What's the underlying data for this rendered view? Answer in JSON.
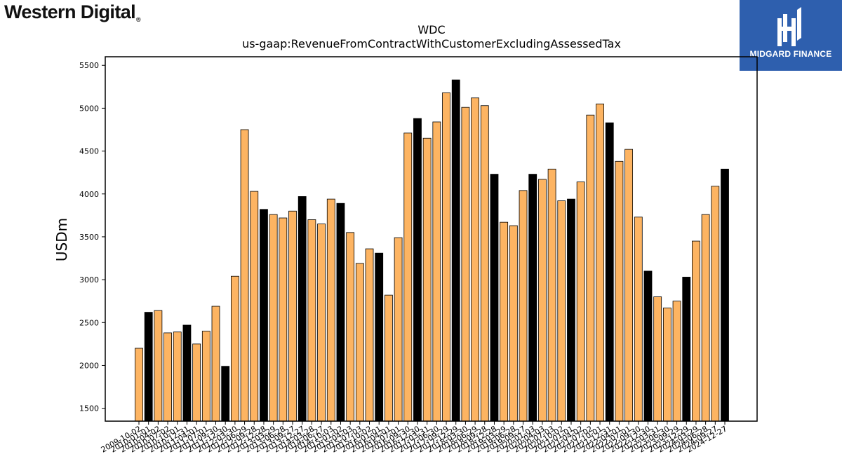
{
  "header": {
    "company_logo_text": "Western Digital",
    "brand_name": "MIDGARD FINANCE"
  },
  "chart_data": {
    "type": "bar",
    "title": "WDC",
    "subtitle": "us-gaap:RevenueFromContractWithCustomerExcludingAssessedTax",
    "ylabel": "USDm",
    "xlabel": "",
    "ylim": [
      1350,
      5600
    ],
    "yticks": [
      1500,
      2000,
      2500,
      3000,
      3500,
      4000,
      4500,
      5000,
      5500
    ],
    "grid": false,
    "legend": "none",
    "colors": {
      "quarter": "#fdb462",
      "fiscal_year_end": "#000000",
      "edge": "#000000"
    },
    "categories": [
      "2009-10-02",
      "2010-01-01",
      "2010-04-02",
      "2010-07-02",
      "2010-10-01",
      "2010-12-31",
      "2011-04-01",
      "2011-07-01",
      "2011-09-30",
      "2011-12-30",
      "2012-03-30",
      "2012-06-29",
      "2012-09-28",
      "2012-12-28",
      "2013-03-29",
      "2013-06-28",
      "2013-09-27",
      "2013-12-27",
      "2014-03-28",
      "2014-06-27",
      "2014-10-03",
      "2015-01-02",
      "2015-04-03",
      "2015-07-03",
      "2015-10-02",
      "2016-01-01",
      "2016-04-01",
      "2016-07-01",
      "2016-09-30",
      "2016-12-30",
      "2017-03-31",
      "2017-06-30",
      "2017-09-29",
      "2017-12-29",
      "2018-03-30",
      "2018-06-29",
      "2018-09-28",
      "2018-12-28",
      "2019-03-29",
      "2019-06-28",
      "2019-09-27",
      "2020-01-03",
      "2020-04-03",
      "2020-07-03",
      "2020-10-02",
      "2021-01-01",
      "2021-04-02",
      "2021-07-02",
      "2021-10-01",
      "2021-12-31",
      "2022-04-01",
      "2022-07-01",
      "2022-09-30",
      "2022-12-30",
      "2023-03-31",
      "2023-06-30",
      "2023-09-29",
      "2023-12-29",
      "2024-03-29",
      "2024-06-28",
      "2024-09-27",
      "2024-12-27"
    ],
    "tick_labels": [
      "2009-10-02",
      "2010-01-01",
      "2010-04-02",
      "2010-07-02",
      "2010-10-01",
      "2010-12-31",
      "2011-04-01",
      "2011-07-01",
      "2011-09-30",
      "2011-12-30",
      "2012-03-30",
      "2012-06-29",
      "2012-09-28",
      "2012-12-28",
      "2013-03-29",
      "2013-06-28",
      "2013-09-27",
      "2013-12-27",
      "2014-03-28",
      "2014-06-27",
      "2014-10-03",
      "2015-01-02",
      "2015-04-03",
      "2015-07-03",
      "2015-10-02",
      "2016-01-01",
      "2016-04-01",
      "2016-07-01",
      "2016-09-30",
      "2016-12-30",
      "2017-03-31",
      "2017-06-30",
      "2017-09-29",
      "2017-12-29",
      "2018-03-30",
      "2018-06-29",
      "2018-09-28",
      "2018-12-28",
      "2019-03-29",
      "2019-06-28",
      "2019-09-27",
      "2020-01-03",
      "2020-04-03",
      "2020-07-03",
      "2020-10-02",
      "2021-01-01",
      "2021-04-02",
      "2021-07-02",
      "2021-10-01",
      "2021-12-31",
      "2022-04-01",
      "2022-07-01",
      "2022-09-30",
      "2022-12-30",
      "2023-03-31",
      "2023-06-30",
      "2023-09-29",
      "2023-12-29",
      "2024-03-29",
      "2024-06-28",
      "2024-09-27",
      "2024-12-27"
    ],
    "values": [
      2200,
      2620,
      2640,
      2380,
      2390,
      2470,
      2250,
      2400,
      2690,
      1990,
      3040,
      4750,
      4030,
      3820,
      3760,
      3720,
      3800,
      3970,
      3700,
      3650,
      3940,
      3890,
      3550,
      3190,
      3360,
      3310,
      2820,
      3490,
      4710,
      4880,
      4650,
      4840,
      5180,
      5330,
      5010,
      5120,
      5030,
      4230,
      3670,
      3630,
      4040,
      4230,
      4170,
      4290,
      3920,
      3940,
      4140,
      4920,
      5050,
      4830,
      4380,
      4520,
      3730,
      3100,
      2800,
      2670,
      2750,
      3030,
      3450,
      3760,
      4090,
      4290
    ],
    "fiscal_year_end": [
      false,
      true,
      false,
      false,
      false,
      true,
      false,
      false,
      false,
      true,
      false,
      false,
      false,
      true,
      false,
      false,
      false,
      true,
      false,
      false,
      false,
      true,
      false,
      false,
      false,
      true,
      false,
      false,
      false,
      true,
      false,
      false,
      false,
      true,
      false,
      false,
      false,
      true,
      false,
      false,
      false,
      true,
      false,
      false,
      false,
      true,
      false,
      false,
      false,
      true,
      false,
      false,
      false,
      true,
      false,
      false,
      false,
      true,
      false,
      false,
      false,
      true
    ]
  }
}
